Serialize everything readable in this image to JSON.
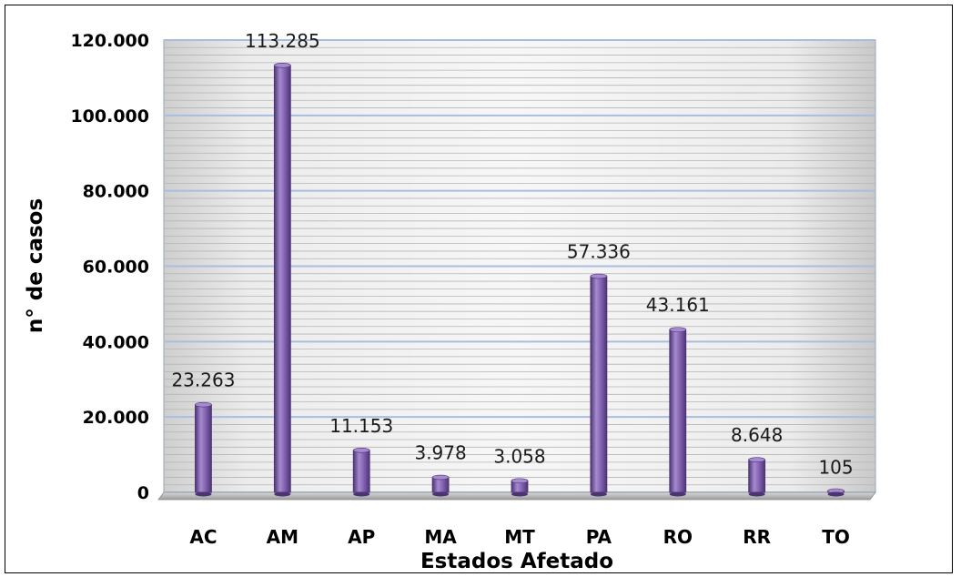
{
  "chart_data": {
    "type": "bar",
    "categories": [
      "AC",
      "AM",
      "AP",
      "MA",
      "MT",
      "PA",
      "RO",
      "RR",
      "TO"
    ],
    "values": [
      23263,
      113285,
      11153,
      3978,
      3058,
      57336,
      43161,
      8648,
      105
    ],
    "data_labels": [
      "23.263",
      "113.285",
      "11.153",
      "3.978",
      "3.058",
      "57.336",
      "43.161",
      "8.648",
      "105"
    ],
    "xlabel": "Estados Afetado",
    "ylabel": "n° de casos",
    "ylim": [
      0,
      120000
    ],
    "yticks": [
      {
        "value": 0,
        "label": "0"
      },
      {
        "value": 20000,
        "label": "20.000"
      },
      {
        "value": 40000,
        "label": "40.000"
      },
      {
        "value": 60000,
        "label": "60.000"
      },
      {
        "value": 80000,
        "label": "80.000"
      },
      {
        "value": 100000,
        "label": "100.000"
      },
      {
        "value": 120000,
        "label": "120.000"
      }
    ],
    "grid": true,
    "bar_color": "#7a5aa8",
    "bar_color_light": "#a68ad0",
    "bar_color_dark": "#4c3473",
    "gridline_color": "#a9bde0"
  }
}
